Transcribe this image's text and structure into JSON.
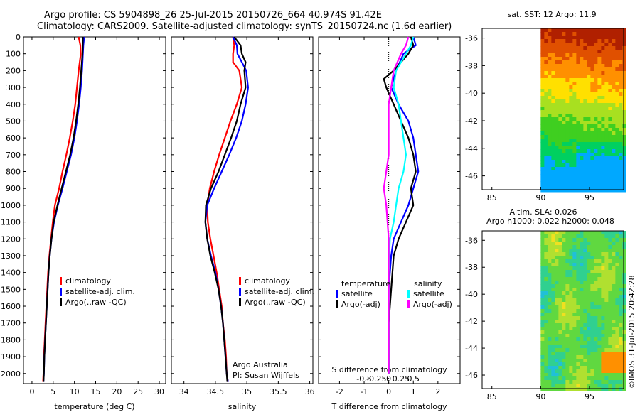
{
  "header": {
    "line1": "Argo profile: CS 5904898_26 25-Jul-2015 20150726_664 40.974S 91.42E",
    "line2": "Climatology: CARS2009. Satellite-adjusted climatology: synTS_20150724.nc (1.6d earlier)"
  },
  "colors": {
    "climatology": "#ff0000",
    "satellite": "#0000ff",
    "argo": "#000000",
    "sat_salinity": "#00ffff",
    "argo_salinity": "#ff00ff"
  },
  "chart_data": [
    {
      "id": "temperature",
      "type": "line",
      "xlabel": "temperature (deg C)",
      "xticks": [
        0,
        5,
        10,
        15,
        20,
        25,
        30
      ],
      "xlim": [
        -2,
        31.5
      ],
      "ylim": [
        0,
        2060
      ],
      "yticks": [
        0,
        100,
        200,
        300,
        400,
        500,
        600,
        700,
        800,
        900,
        1000,
        1100,
        1200,
        1300,
        1400,
        1500,
        1600,
        1700,
        1800,
        1900,
        2000
      ],
      "legend": [
        "climatology",
        "satellite-adj. clim.",
        "Argo(..raw -QC)"
      ],
      "series": [
        {
          "name": "climatology",
          "color": "red",
          "points": [
            [
              11,
              0
            ],
            [
              11.4,
              50
            ],
            [
              11.5,
              100
            ],
            [
              11,
              200
            ],
            [
              10.6,
              300
            ],
            [
              10.2,
              400
            ],
            [
              9.6,
              500
            ],
            [
              8.9,
              600
            ],
            [
              8.1,
              700
            ],
            [
              7.2,
              800
            ],
            [
              6.4,
              900
            ],
            [
              5.4,
              1000
            ],
            [
              4.9,
              1100
            ],
            [
              4.5,
              1200
            ],
            [
              4.1,
              1300
            ],
            [
              3.8,
              1400
            ],
            [
              3.6,
              1500
            ],
            [
              3.4,
              1600
            ],
            [
              3.2,
              1700
            ],
            [
              3,
              1800
            ],
            [
              2.8,
              1900
            ],
            [
              2.7,
              2000
            ],
            [
              2.6,
              2050
            ]
          ]
        },
        {
          "name": "satellite-adj. clim.",
          "color": "blue",
          "points": [
            [
              12.3,
              0
            ],
            [
              12.1,
              50
            ],
            [
              12,
              100
            ],
            [
              11.8,
              200
            ],
            [
              11.5,
              300
            ],
            [
              11.1,
              400
            ],
            [
              10.6,
              500
            ],
            [
              10,
              600
            ],
            [
              9.2,
              700
            ],
            [
              8.2,
              800
            ],
            [
              7.2,
              900
            ],
            [
              6.1,
              1000
            ],
            [
              5.2,
              1100
            ],
            [
              4.6,
              1200
            ],
            [
              4.2,
              1300
            ],
            [
              3.9,
              1400
            ],
            [
              3.7,
              1500
            ],
            [
              3.5,
              1600
            ],
            [
              3.3,
              1700
            ],
            [
              3.1,
              1800
            ],
            [
              2.9,
              1900
            ],
            [
              2.8,
              2000
            ],
            [
              2.7,
              2050
            ]
          ]
        },
        {
          "name": "Argo(..raw -QC)",
          "color": "black",
          "points": [
            [
              12,
              0
            ],
            [
              11.9,
              100
            ],
            [
              11.6,
              200
            ],
            [
              11.3,
              300
            ],
            [
              10.9,
              400
            ],
            [
              10.4,
              500
            ],
            [
              9.8,
              600
            ],
            [
              9,
              700
            ],
            [
              8,
              800
            ],
            [
              7,
              900
            ],
            [
              6,
              1000
            ],
            [
              5.1,
              1100
            ],
            [
              4.6,
              1200
            ],
            [
              4.2,
              1300
            ],
            [
              3.9,
              1400
            ],
            [
              3.7,
              1500
            ],
            [
              3.5,
              1600
            ],
            [
              3.3,
              1700
            ],
            [
              3.1,
              1800
            ],
            [
              2.9,
              1900
            ],
            [
              2.8,
              2000
            ],
            [
              2.7,
              2050
            ]
          ]
        }
      ]
    },
    {
      "id": "salinity",
      "type": "line",
      "xlabel": "salinity",
      "xticks": [
        34,
        34.5,
        35,
        35.5,
        36
      ],
      "xlim": [
        33.8,
        36.05
      ],
      "ylim": [
        0,
        2060
      ],
      "legend": [
        "climatology",
        "satellite-adj. clim.",
        "Argo(..raw -QC)"
      ],
      "annotation": [
        "Argo Australia",
        "PI: Susan Wijffels"
      ],
      "series": [
        {
          "name": "climatology",
          "color": "red",
          "points": [
            [
              34.78,
              0
            ],
            [
              34.8,
              50
            ],
            [
              34.78,
              100
            ],
            [
              34.78,
              150
            ],
            [
              34.88,
              200
            ],
            [
              34.92,
              300
            ],
            [
              34.84,
              400
            ],
            [
              34.74,
              500
            ],
            [
              34.65,
              600
            ],
            [
              34.56,
              700
            ],
            [
              34.48,
              800
            ],
            [
              34.41,
              900
            ],
            [
              34.37,
              1000
            ],
            [
              34.38,
              1100
            ],
            [
              34.42,
              1200
            ],
            [
              34.47,
              1300
            ],
            [
              34.52,
              1400
            ],
            [
              34.56,
              1500
            ],
            [
              34.6,
              1600
            ],
            [
              34.62,
              1700
            ],
            [
              34.65,
              1800
            ],
            [
              34.67,
              1900
            ],
            [
              34.68,
              2000
            ],
            [
              34.7,
              2050
            ]
          ]
        },
        {
          "name": "satellite-adj. clim.",
          "color": "blue",
          "points": [
            [
              34.78,
              0
            ],
            [
              34.84,
              50
            ],
            [
              34.85,
              100
            ],
            [
              34.92,
              150
            ],
            [
              34.99,
              200
            ],
            [
              35.02,
              300
            ],
            [
              34.98,
              400
            ],
            [
              34.92,
              500
            ],
            [
              34.83,
              600
            ],
            [
              34.72,
              700
            ],
            [
              34.6,
              800
            ],
            [
              34.48,
              900
            ],
            [
              34.37,
              1000
            ],
            [
              34.34,
              1100
            ],
            [
              34.37,
              1200
            ],
            [
              34.43,
              1300
            ],
            [
              34.5,
              1400
            ],
            [
              34.55,
              1500
            ],
            [
              34.59,
              1600
            ],
            [
              34.62,
              1700
            ],
            [
              34.64,
              1800
            ],
            [
              34.66,
              1900
            ],
            [
              34.68,
              2000
            ],
            [
              34.7,
              2050
            ]
          ]
        },
        {
          "name": "Argo(..raw -QC)",
          "color": "black",
          "points": [
            [
              34.8,
              0
            ],
            [
              34.9,
              50
            ],
            [
              34.92,
              100
            ],
            [
              34.98,
              150
            ],
            [
              34.96,
              200
            ],
            [
              34.98,
              300
            ],
            [
              34.9,
              400
            ],
            [
              34.84,
              500
            ],
            [
              34.75,
              600
            ],
            [
              34.65,
              700
            ],
            [
              34.55,
              800
            ],
            [
              34.43,
              900
            ],
            [
              34.35,
              1000
            ],
            [
              34.34,
              1100
            ],
            [
              34.37,
              1200
            ],
            [
              34.42,
              1300
            ],
            [
              34.49,
              1400
            ],
            [
              34.55,
              1500
            ],
            [
              34.59,
              1600
            ],
            [
              34.62,
              1700
            ],
            [
              34.64,
              1800
            ],
            [
              34.66,
              1900
            ],
            [
              34.68,
              2000
            ],
            [
              34.69,
              2050
            ]
          ]
        }
      ]
    },
    {
      "id": "difference",
      "type": "line",
      "xlabel": "T difference from climatology",
      "xticks": [
        -2,
        -1,
        0,
        1,
        2
      ],
      "xlim": [
        -2.85,
        2.9
      ],
      "top_axis_label": "S difference from climatology",
      "top_ticks": [
        "-0.5",
        "-0.25",
        "0",
        "0.25",
        "0.5"
      ],
      "ylim": [
        0,
        2060
      ],
      "legend_headers": [
        "temperature",
        "salinity"
      ],
      "legend": [
        "satellite",
        "Argo(-adj)",
        "satellite",
        "Argo(-adj)"
      ],
      "series": [
        {
          "name": "satellite",
          "color": "blue",
          "points": [
            [
              1,
              0
            ],
            [
              1.1,
              50
            ],
            [
              0.6,
              100
            ],
            [
              0.3,
              200
            ],
            [
              0.1,
              300
            ],
            [
              0.4,
              400
            ],
            [
              0.8,
              500
            ],
            [
              1,
              600
            ],
            [
              1.1,
              700
            ],
            [
              1.2,
              800
            ],
            [
              1,
              900
            ],
            [
              0.8,
              1000
            ],
            [
              0.5,
              1100
            ],
            [
              0.2,
              1200
            ],
            [
              0.1,
              1300
            ],
            [
              0,
              1500
            ],
            [
              0,
              1700
            ],
            [
              0,
              2000
            ]
          ]
        },
        {
          "name": "Argo(-adj)",
          "color": "black",
          "points": [
            [
              0.9,
              0
            ],
            [
              1,
              50
            ],
            [
              0.8,
              100
            ],
            [
              0.2,
              200
            ],
            [
              -0.2,
              250
            ],
            [
              -0.1,
              300
            ],
            [
              0.2,
              400
            ],
            [
              0.5,
              500
            ],
            [
              0.8,
              600
            ],
            [
              1,
              700
            ],
            [
              1.1,
              800
            ],
            [
              0.9,
              900
            ],
            [
              1,
              1000
            ],
            [
              0.7,
              1100
            ],
            [
              0.4,
              1200
            ],
            [
              0.2,
              1300
            ],
            [
              0.1,
              1500
            ],
            [
              0,
              1700
            ],
            [
              0,
              2000
            ]
          ]
        },
        {
          "name": "satellite",
          "color": "cyan",
          "points": [
            [
              1,
              0
            ],
            [
              0.9,
              50
            ],
            [
              0.7,
              100
            ],
            [
              0.3,
              200
            ],
            [
              0.2,
              300
            ],
            [
              0.4,
              400
            ],
            [
              0.5,
              500
            ],
            [
              0.6,
              600
            ],
            [
              0.7,
              700
            ],
            [
              0.6,
              800
            ],
            [
              0.4,
              900
            ],
            [
              0.3,
              1000
            ],
            [
              0.2,
              1100
            ],
            [
              0.05,
              1200
            ],
            [
              0,
              1400
            ],
            [
              0,
              1700
            ],
            [
              0,
              2000
            ]
          ]
        },
        {
          "name": "Argo(-adj)",
          "color": "magenta",
          "points": [
            [
              0.8,
              0
            ],
            [
              0.7,
              50
            ],
            [
              0.5,
              100
            ],
            [
              0.2,
              200
            ],
            [
              0.1,
              300
            ],
            [
              0,
              400
            ],
            [
              0,
              500
            ],
            [
              0,
              600
            ],
            [
              0,
              700
            ],
            [
              -0.1,
              800
            ],
            [
              -0.2,
              900
            ],
            [
              -0.1,
              1000
            ],
            [
              -0.05,
              1100
            ],
            [
              0,
              1200
            ],
            [
              0,
              1400
            ],
            [
              0,
              1700
            ],
            [
              0,
              2000
            ]
          ]
        }
      ]
    },
    {
      "id": "sst-map",
      "type": "heatmap",
      "title": "sat. SST: 12 Argo: 11.9",
      "xticks": [
        85,
        90,
        95
      ],
      "yticks": [
        -36,
        -38,
        -40,
        -42,
        -44,
        -46
      ],
      "xlim": [
        84,
        98.5
      ],
      "ylim": [
        -47,
        -35.3
      ]
    },
    {
      "id": "sla-map",
      "type": "heatmap",
      "title": "Altim. SLA: 0.026",
      "subtitle": "Argo h1000: 0.022 h2000: 0.048",
      "xticks": [
        85,
        90,
        95
      ],
      "yticks": [
        -36,
        -38,
        -40,
        -42,
        -44,
        -46
      ],
      "xlim": [
        84,
        98.5
      ],
      "ylim": [
        -47,
        -35.3
      ]
    }
  ],
  "footer": {
    "credit": "©IMOS 31-Jul-2015 20:42:28"
  }
}
